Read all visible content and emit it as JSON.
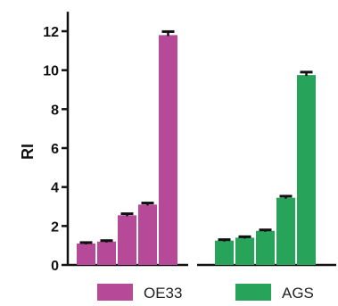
{
  "chart_data": {
    "type": "bar",
    "ylabel": "RI",
    "ylim": [
      0,
      13
    ],
    "yticks": [
      0,
      2,
      4,
      6,
      8,
      10,
      12
    ],
    "grid": false,
    "legend_position": "bottom",
    "series": [
      {
        "name": "OE33",
        "color": "#b64a98",
        "values": [
          1.1,
          1.2,
          2.55,
          3.1,
          11.8
        ],
        "errors": [
          0.05,
          0.05,
          0.08,
          0.08,
          0.18
        ]
      },
      {
        "name": "AGS",
        "color": "#27a35a",
        "values": [
          1.25,
          1.4,
          1.75,
          3.45,
          9.75
        ],
        "errors": [
          0.05,
          0.05,
          0.05,
          0.08,
          0.15
        ]
      }
    ]
  }
}
